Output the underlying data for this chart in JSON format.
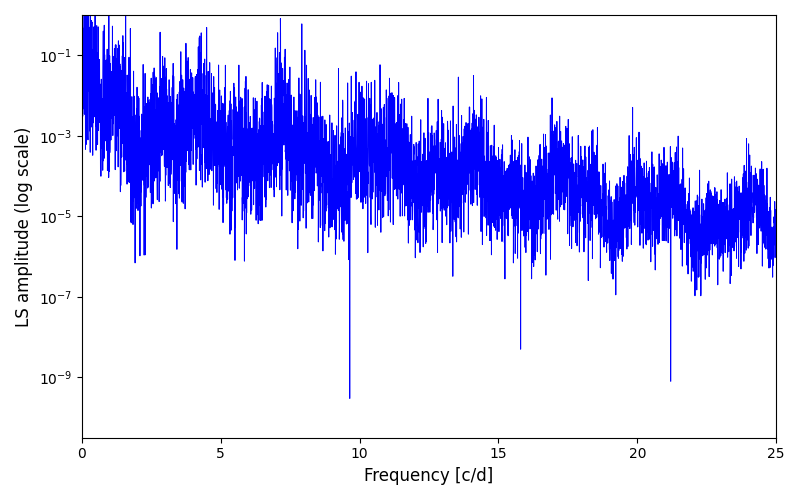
{
  "xlabel": "Frequency [c/d]",
  "ylabel": "LS amplitude (log scale)",
  "xlim": [
    0,
    25
  ],
  "ylim_log": [
    -10.5,
    0
  ],
  "line_color": "blue",
  "line_width": 0.7,
  "background_color": "#ffffff",
  "freq_min": 0.001,
  "freq_max": 25.0,
  "n_points": 5000,
  "seed": 7
}
